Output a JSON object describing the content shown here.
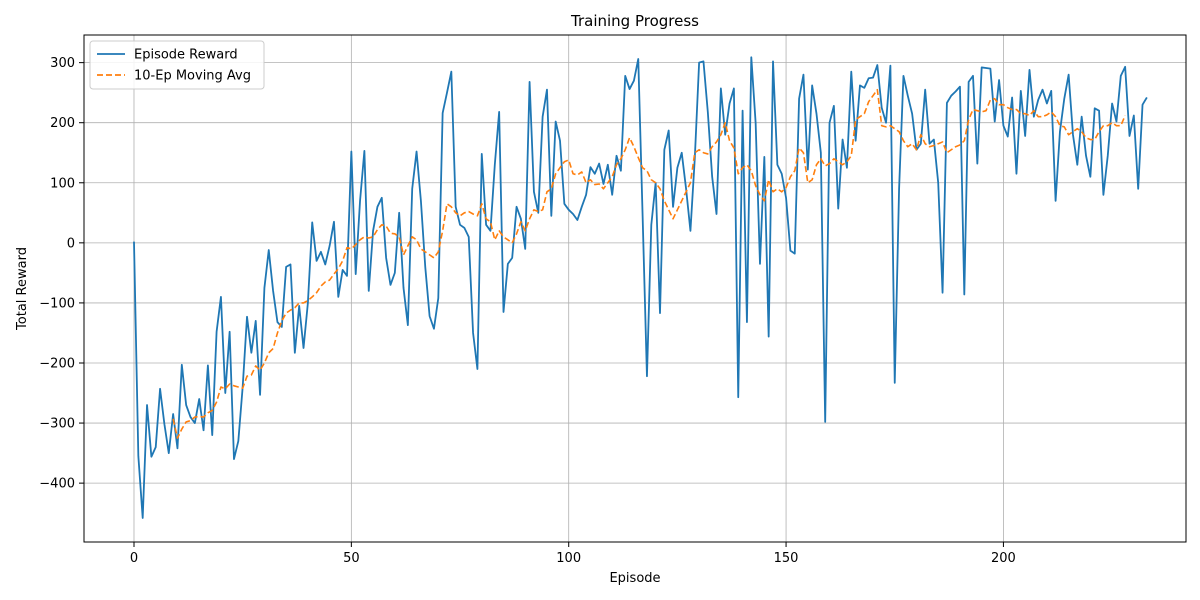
{
  "chart_data": {
    "type": "line",
    "title": "Training Progress",
    "xlabel": "Episode",
    "ylabel": "Total Reward",
    "xlim": [
      -11.5,
      242
    ],
    "ylim": [
      -498,
      346
    ],
    "xticks": [
      0,
      50,
      100,
      150,
      200
    ],
    "yticks": [
      -400,
      -300,
      -200,
      -100,
      0,
      100,
      200,
      300
    ],
    "xtick_labels": [
      "0",
      "50",
      "100",
      "150",
      "200"
    ],
    "ytick_labels": [
      "−400",
      "−300",
      "−200",
      "−100",
      "0",
      "100",
      "200",
      "300"
    ],
    "grid": true,
    "legend_position": "top-left",
    "series": [
      {
        "name": "Episode Reward",
        "color": "#1f77b4",
        "style": "solid",
        "x_start": 0,
        "values": [
          2,
          -355,
          -458,
          -270,
          -356,
          -340,
          -243,
          -302,
          -350,
          -285,
          -342,
          -203,
          -270,
          -290,
          -300,
          -260,
          -312,
          -204,
          -320,
          -148,
          -90,
          -250,
          -148,
          -360,
          -330,
          -240,
          -123,
          -183,
          -130,
          -253,
          -75,
          -12,
          -80,
          -132,
          -140,
          -40,
          -36,
          -183,
          -105,
          -175,
          -100,
          34,
          -30,
          -15,
          -36,
          -5,
          35,
          -90,
          -45,
          -55,
          152,
          -52,
          70,
          153,
          -80,
          20,
          60,
          75,
          -25,
          -70,
          -50,
          50,
          -75,
          -137,
          90,
          152,
          70,
          -40,
          -122,
          -143,
          -92,
          216,
          250,
          285,
          60,
          30,
          25,
          10,
          -150,
          -210,
          148,
          30,
          20,
          130,
          218,
          -115,
          -35,
          -25,
          60,
          40,
          -10,
          268,
          85,
          50,
          210,
          255,
          45,
          202,
          170,
          65,
          55,
          48,
          38,
          60,
          80,
          126,
          115,
          132,
          98,
          130,
          80,
          145,
          120,
          278,
          256,
          270,
          306,
          45,
          -222,
          30,
          100,
          -117,
          155,
          187,
          60,
          125,
          150,
          90,
          20,
          140,
          300,
          302,
          218,
          110,
          48,
          257,
          180,
          232,
          257,
          -257,
          220,
          -132,
          309,
          200,
          -35,
          143,
          -156,
          302,
          130,
          115,
          75,
          -13,
          -18,
          240,
          280,
          122,
          262,
          215,
          150,
          -298,
          200,
          228,
          57,
          172,
          125,
          285,
          170,
          262,
          258,
          274,
          275,
          296,
          225,
          200,
          295,
          -233,
          90,
          278,
          245,
          215,
          155,
          165,
          255,
          165,
          172,
          100,
          -83,
          233,
          245,
          252,
          260,
          -86,
          268,
          278,
          132,
          292,
          291,
          290,
          202,
          271,
          195,
          177,
          242,
          115,
          253,
          178,
          288,
          210,
          238,
          255,
          232,
          253,
          70,
          185,
          240,
          280,
          180,
          130,
          210,
          145,
          110,
          224,
          220,
          80,
          145,
          232,
          202,
          278,
          293,
          178,
          212,
          90,
          230,
          242
        ]
      },
      {
        "name": "10-Ep Moving Avg",
        "color": "#ff7f0e",
        "style": "dashed",
        "x_start": 9,
        "values": [
          -293,
          -325,
          -310,
          -298,
          -296,
          -290,
          -289,
          -290,
          -283,
          -279,
          -265,
          -240,
          -243,
          -235,
          -238,
          -240,
          -242,
          -222,
          -220,
          -205,
          -212,
          -200,
          -183,
          -176,
          -150,
          -130,
          -117,
          -112,
          -108,
          -100,
          -100,
          -96,
          -90,
          -83,
          -72,
          -65,
          -62,
          -52,
          -43,
          -30,
          -8,
          -10,
          -3,
          5,
          10,
          8,
          10,
          22,
          30,
          28,
          16,
          15,
          10,
          -20,
          -5,
          10,
          5,
          -10,
          -15,
          -20,
          -25,
          -15,
          20,
          65,
          60,
          50,
          45,
          50,
          52,
          48,
          45,
          65,
          40,
          35,
          5,
          20,
          10,
          5,
          0,
          15,
          35,
          20,
          40,
          55,
          52,
          55,
          85,
          90,
          115,
          125,
          135,
          138,
          115,
          113,
          118,
          100,
          105,
          97,
          98,
          90,
          100,
          110,
          130,
          140,
          155,
          175,
          160,
          142,
          125,
          120,
          105,
          100,
          90,
          70,
          55,
          40,
          55,
          70,
          85,
          100,
          150,
          155,
          150,
          148,
          160,
          168,
          180,
          200,
          170,
          158,
          115,
          125,
          130,
          120,
          95,
          80,
          70,
          105,
          85,
          90,
          85,
          92,
          110,
          120,
          158,
          150,
          100,
          105,
          130,
          140,
          128,
          132,
          140,
          135,
          130,
          135,
          145,
          205,
          210,
          215,
          235,
          245,
          255,
          195,
          193,
          195,
          190,
          185,
          170,
          160,
          165,
          155,
          180,
          165,
          160,
          162,
          165,
          168,
          150,
          155,
          160,
          163,
          170,
          205,
          222,
          220,
          218,
          220,
          238,
          240,
          230,
          230,
          225,
          222,
          222,
          215,
          215,
          212,
          220,
          210,
          210,
          213,
          218,
          210,
          195,
          193,
          180,
          185,
          190,
          185,
          175,
          172,
          172,
          185,
          195,
          195,
          200,
          195,
          195,
          212
        ]
      }
    ]
  }
}
